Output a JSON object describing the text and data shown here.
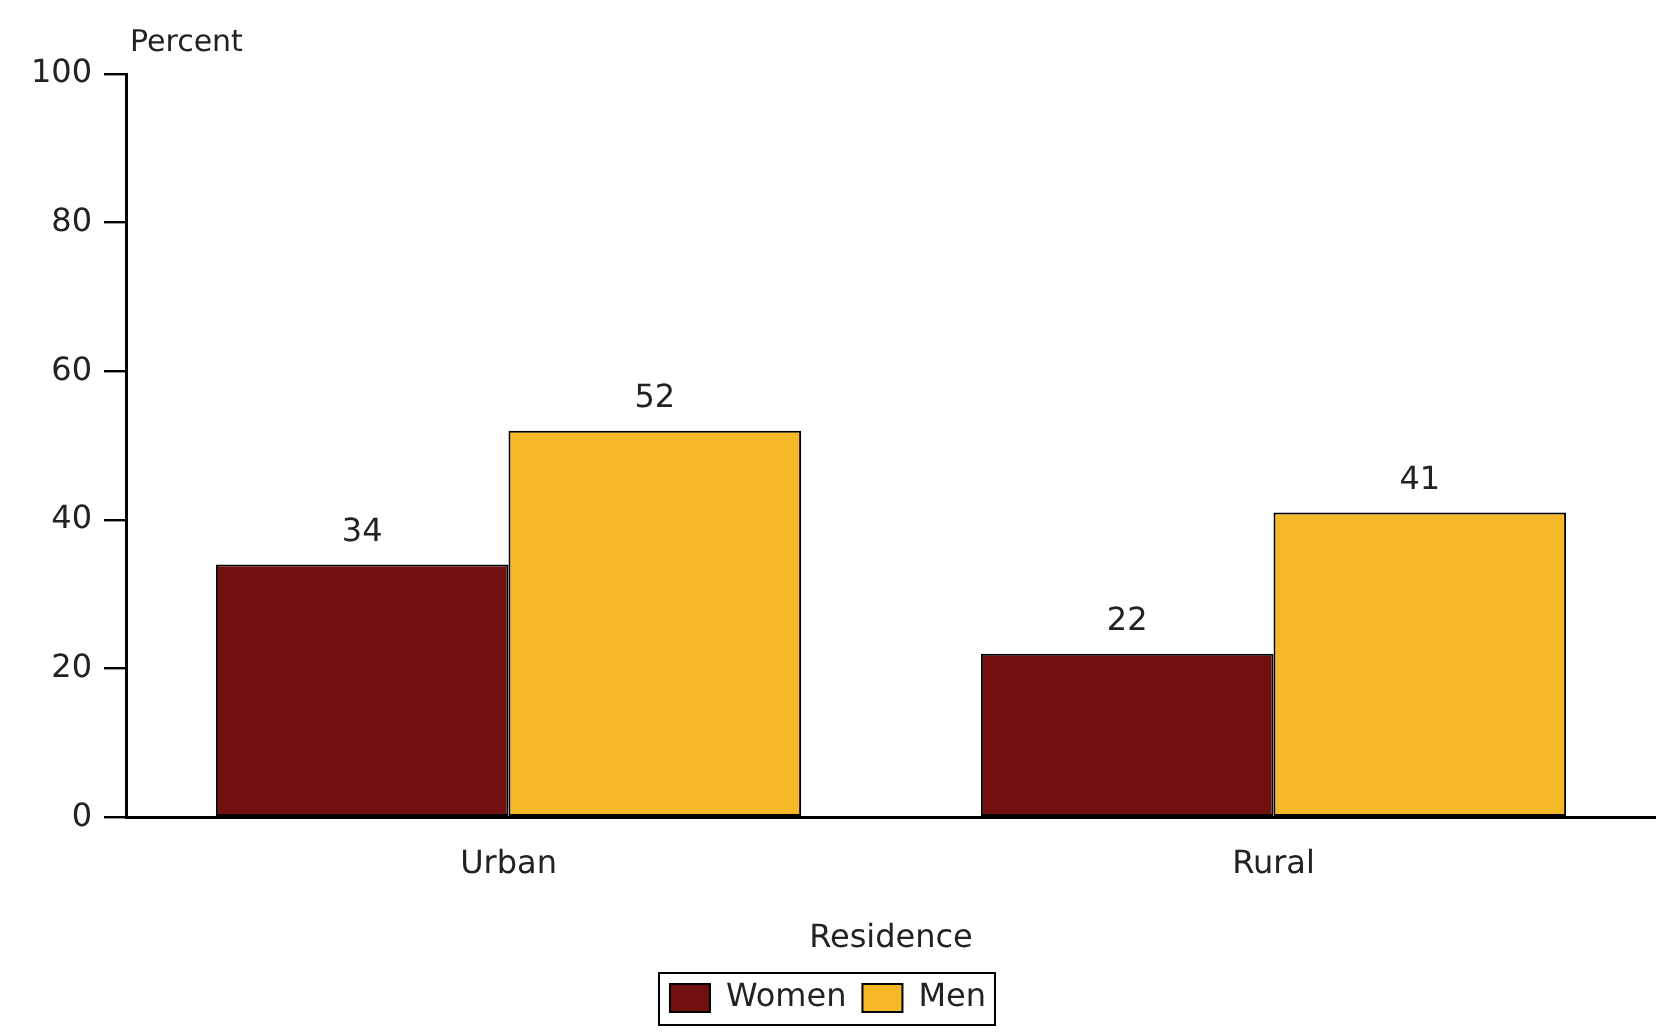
{
  "chart_data": {
    "type": "bar",
    "categories": [
      "Urban",
      "Rural"
    ],
    "xlabel": "Residence",
    "ylabel": "Percent",
    "series": [
      {
        "name": "Women",
        "color": "#72100f",
        "values": [
          34,
          22
        ]
      },
      {
        "name": "Men",
        "color": "#f5b928",
        "values": [
          52,
          41
        ]
      }
    ],
    "ylim": [
      0,
      100
    ],
    "yticks": [
      0,
      20,
      40,
      60,
      80,
      100
    ],
    "data_labels": true,
    "legend": "bottom"
  }
}
